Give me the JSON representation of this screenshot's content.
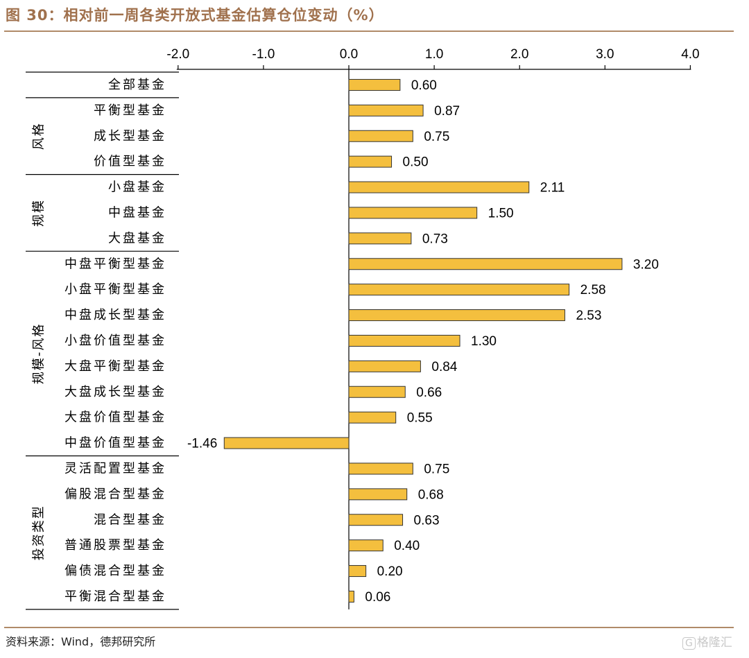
{
  "title": "图 30：相对前一周各类开放式基金估算仓位变动（%）",
  "source": "资料来源：Wind，德邦研究所",
  "watermark": "格隆汇",
  "colors": {
    "bar": "#f4bf3e",
    "bar_stroke": "#333333",
    "title": "#a0714d",
    "rule": "#b08a68"
  },
  "chart_data": {
    "type": "bar",
    "orientation": "horizontal",
    "xlim": [
      -2.0,
      4.0
    ],
    "x_ticks": [
      "-2.0",
      "-1.0",
      "0.0",
      "1.0",
      "2.0",
      "3.0",
      "4.0"
    ],
    "x_tick_values": [
      -2,
      -1,
      0,
      1,
      2,
      3,
      4
    ],
    "axis_position": "top",
    "grid": false,
    "categories": [
      "全部基金",
      "平衡型基金",
      "成长型基金",
      "价值型基金",
      "小盘基金",
      "中盘基金",
      "大盘基金",
      "中盘平衡型基金",
      "小盘平衡型基金",
      "中盘成长型基金",
      "小盘价值型基金",
      "大盘平衡型基金",
      "大盘成长型基金",
      "大盘价值型基金",
      "中盘价值型基金",
      "灵活配置型基金",
      "偏股混合型基金",
      "混合型基金",
      "普通股票型基金",
      "偏债混合型基金",
      "平衡混合型基金"
    ],
    "values": [
      0.6,
      0.87,
      0.75,
      0.5,
      2.11,
      1.5,
      0.73,
      3.2,
      2.58,
      2.53,
      1.3,
      0.84,
      0.66,
      0.55,
      -1.46,
      0.75,
      0.68,
      0.63,
      0.4,
      0.2,
      0.06
    ],
    "value_labels": [
      "0.60",
      "0.87",
      "0.75",
      "0.50",
      "2.11",
      "1.50",
      "0.73",
      "3.20",
      "2.58",
      "2.53",
      "1.30",
      "0.84",
      "0.66",
      "0.55",
      "-1.46",
      "0.75",
      "0.68",
      "0.63",
      "0.40",
      "0.20",
      "0.06"
    ],
    "groups": [
      {
        "label": "风格",
        "start": 1,
        "end": 3
      },
      {
        "label": "规模",
        "start": 4,
        "end": 6
      },
      {
        "label": "规模-风格",
        "start": 7,
        "end": 14
      },
      {
        "label": "投资类型",
        "start": 15,
        "end": 20
      }
    ]
  }
}
